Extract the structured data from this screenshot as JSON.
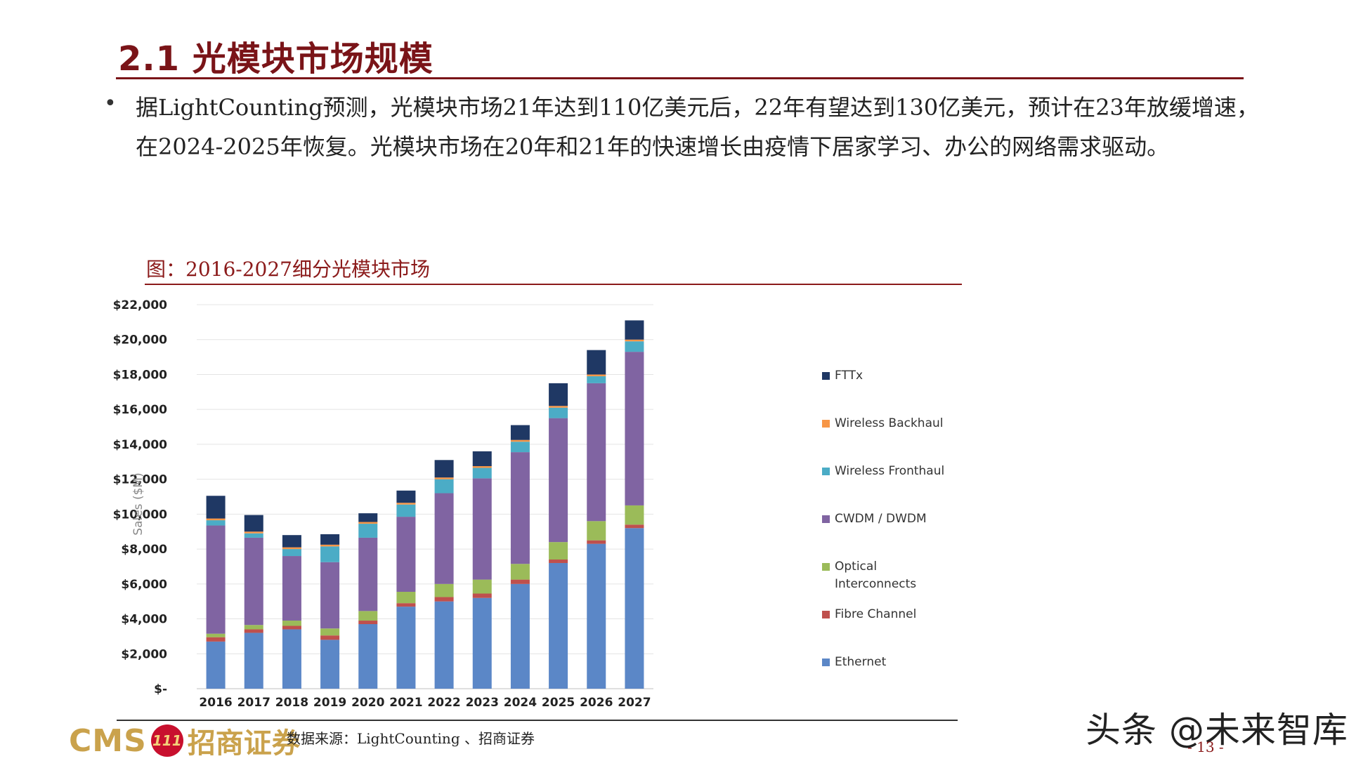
{
  "slide": {
    "title": "2.1  光模块市场规模",
    "bullet": "据LightCounting预测，光模块市场21年达到110亿美元后，22年有望达到130亿美元，预计在23年放缓增速，在2024-2025年恢复。光模块市场在20年和21年的快速增长由疫情下居家学习、办公的网络需求驱动。",
    "figure_caption": "图：2016-2027细分光模块市场",
    "source": "数据来源：LightCounting 、招商证券",
    "logo_text": "CMS",
    "logo_seal": "111",
    "logo_cn": "招商证券",
    "watermark": "头条 @未来智库",
    "page_number": "- 13 -"
  },
  "chart_data": {
    "type": "bar",
    "stacked": true,
    "ylabel": "Sales ($M)",
    "ylim": [
      0,
      22000
    ],
    "yticks": [
      0,
      2000,
      4000,
      6000,
      8000,
      10000,
      12000,
      14000,
      16000,
      18000,
      20000,
      22000
    ],
    "ytick_labels": [
      "$-",
      "$2,000",
      "$4,000",
      "$6,000",
      "$8,000",
      "$10,000",
      "$12,000",
      "$14,000",
      "$16,000",
      "$18,000",
      "$20,000",
      "$22,000"
    ],
    "grid": true,
    "legend_position": "right",
    "categories": [
      "2016",
      "2017",
      "2018",
      "2019",
      "2020",
      "2021",
      "2022",
      "2023",
      "2024",
      "2025",
      "2026",
      "2027"
    ],
    "series": [
      {
        "name": "Ethernet",
        "color": "#5b87c7",
        "values": [
          2700,
          3200,
          3400,
          2800,
          3700,
          4700,
          5000,
          5200,
          6000,
          7200,
          8300,
          9200
        ]
      },
      {
        "name": "Fibre Channel",
        "color": "#bf504d",
        "values": [
          250,
          200,
          200,
          250,
          200,
          200,
          250,
          250,
          250,
          200,
          200,
          200
        ]
      },
      {
        "name": "Optical Interconnects",
        "color": "#9bbb59",
        "values": [
          200,
          250,
          300,
          400,
          550,
          650,
          750,
          800,
          900,
          1000,
          1100,
          1100
        ]
      },
      {
        "name": "CWDM / DWDM",
        "color": "#8064a2",
        "values": [
          6200,
          5000,
          3700,
          3800,
          4200,
          4300,
          5200,
          5800,
          6400,
          7100,
          7900,
          8800
        ]
      },
      {
        "name": "Wireless Fronthaul",
        "color": "#4bacc6",
        "values": [
          300,
          250,
          400,
          900,
          800,
          700,
          800,
          600,
          600,
          600,
          400,
          600
        ]
      },
      {
        "name": "Wireless Backhaul",
        "color": "#f79646",
        "values": [
          100,
          100,
          100,
          100,
          100,
          100,
          100,
          100,
          100,
          100,
          100,
          100
        ]
      },
      {
        "name": "FTTx",
        "color": "#1f3864",
        "values": [
          1300,
          950,
          700,
          600,
          500,
          700,
          1000,
          850,
          850,
          1300,
          1400,
          1100
        ]
      }
    ]
  }
}
